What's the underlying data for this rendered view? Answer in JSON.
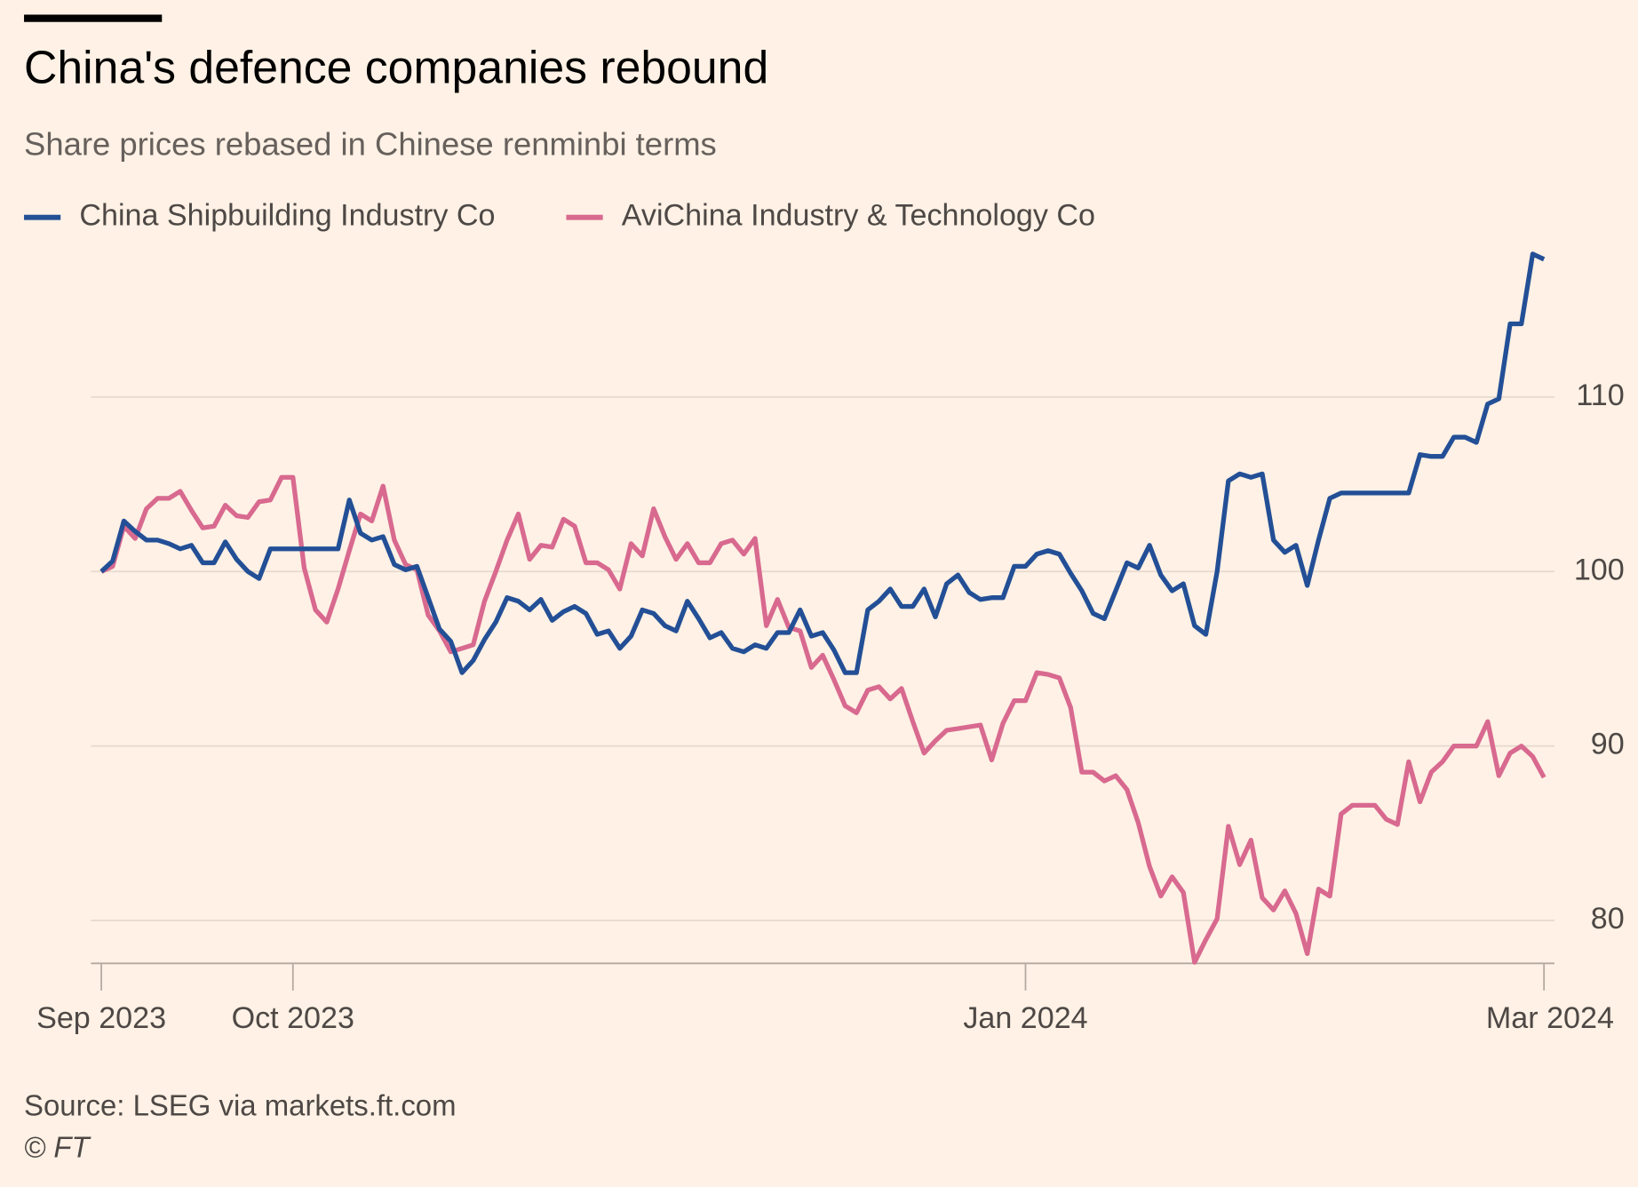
{
  "chart_data": {
    "type": "line",
    "title": "China's defence companies rebound",
    "subtitle": "Share prices rebased in Chinese renminbi terms",
    "source": "Source: LSEG via markets.ft.com",
    "credit": "© FT",
    "xlim": [
      0,
      128
    ],
    "xticks": [
      {
        "value": 0,
        "label": "Sep 2023"
      },
      {
        "value": 17,
        "label": "Oct 2023"
      },
      {
        "value": 82,
        "label": "Jan 2024"
      },
      {
        "value": 128,
        "label": "Mar 2024"
      }
    ],
    "ylim": [
      77.5,
      118.6
    ],
    "yticks": [
      80,
      90,
      100,
      110
    ],
    "grid": true,
    "series": [
      {
        "name": "China Shipbuilding Industry Co",
        "color": "#234f96",
        "values": [
          100.0,
          100.6,
          102.9,
          102.3,
          101.8,
          101.8,
          101.6,
          101.3,
          101.5,
          100.5,
          100.5,
          101.7,
          100.7,
          100.0,
          99.6,
          101.3,
          101.3,
          101.3,
          101.3,
          101.3,
          101.3,
          101.3,
          104.1,
          102.2,
          101.8,
          102.0,
          100.4,
          100.1,
          100.3,
          98.5,
          96.7,
          96.0,
          94.2,
          94.9,
          96.1,
          97.1,
          98.5,
          98.3,
          97.8,
          98.4,
          97.2,
          97.7,
          98.0,
          97.6,
          96.4,
          96.6,
          95.6,
          96.3,
          97.8,
          97.6,
          96.9,
          96.6,
          98.3,
          97.3,
          96.2,
          96.5,
          95.6,
          95.4,
          95.8,
          95.6,
          96.5,
          96.5,
          97.8,
          96.3,
          96.5,
          95.5,
          94.2,
          94.2,
          97.8,
          98.3,
          99.0,
          98.0,
          98.0,
          99.0,
          97.4,
          99.3,
          99.8,
          98.8,
          98.4,
          98.5,
          98.5,
          100.3,
          100.3,
          101.0,
          101.2,
          101.0,
          99.9,
          98.9,
          97.6,
          97.3,
          98.9,
          100.5,
          100.2,
          101.5,
          99.8,
          98.9,
          99.3,
          96.9,
          96.4,
          100.0,
          105.2,
          105.6,
          105.4,
          105.6,
          101.8,
          101.1,
          101.5,
          99.2,
          101.8,
          104.2,
          104.5,
          104.5,
          104.5,
          104.5,
          104.5,
          104.5,
          104.5,
          106.7,
          106.6,
          106.6,
          107.7,
          107.7,
          107.4,
          109.6,
          109.9,
          114.2,
          114.2,
          118.2,
          117.9
        ]
      },
      {
        "name": "AviChina Industry & Technology Co",
        "color": "#d8698f",
        "values": [
          100,
          100.3,
          102.6,
          101.9,
          103.6,
          104.2,
          104.2,
          104.6,
          103.5,
          102.5,
          102.6,
          103.8,
          103.2,
          103.1,
          104.0,
          104.1,
          105.4,
          105.4,
          100.2,
          97.8,
          97.1,
          99.0,
          101.2,
          103.3,
          102.9,
          104.9,
          101.8,
          100.4,
          100.1,
          97.5,
          96.6,
          95.4,
          95.6,
          95.8,
          98.3,
          100.0,
          101.8,
          103.3,
          100.7,
          101.5,
          101.4,
          103.0,
          102.6,
          100.5,
          100.5,
          100.1,
          99.0,
          101.6,
          100.9,
          103.6,
          102.0,
          100.7,
          101.6,
          100.5,
          100.5,
          101.6,
          101.8,
          101.0,
          101.9,
          96.9,
          98.4,
          96.8,
          96.6,
          94.5,
          95.2,
          93.8,
          92.3,
          91.9,
          93.2,
          93.4,
          92.7,
          93.3,
          91.4,
          89.6,
          90.3,
          90.9,
          91.0,
          91.1,
          91.2,
          89.2,
          91.3,
          92.6,
          92.6,
          94.2,
          94.1,
          93.9,
          92.2,
          88.5,
          88.5,
          88.0,
          88.3,
          87.5,
          85.6,
          83.1,
          81.4,
          82.5,
          81.6,
          77.6,
          78.9,
          80.1,
          85.4,
          83.2,
          84.6,
          81.3,
          80.6,
          81.7,
          80.4,
          78.1,
          81.8,
          81.4,
          86.1,
          86.6,
          86.6,
          86.6,
          85.8,
          85.5,
          89.1,
          86.8,
          88.5,
          89.1,
          90.0,
          90.0,
          90.0,
          91.4,
          88.3,
          89.6,
          90.0,
          89.4,
          88.2
        ]
      }
    ]
  }
}
